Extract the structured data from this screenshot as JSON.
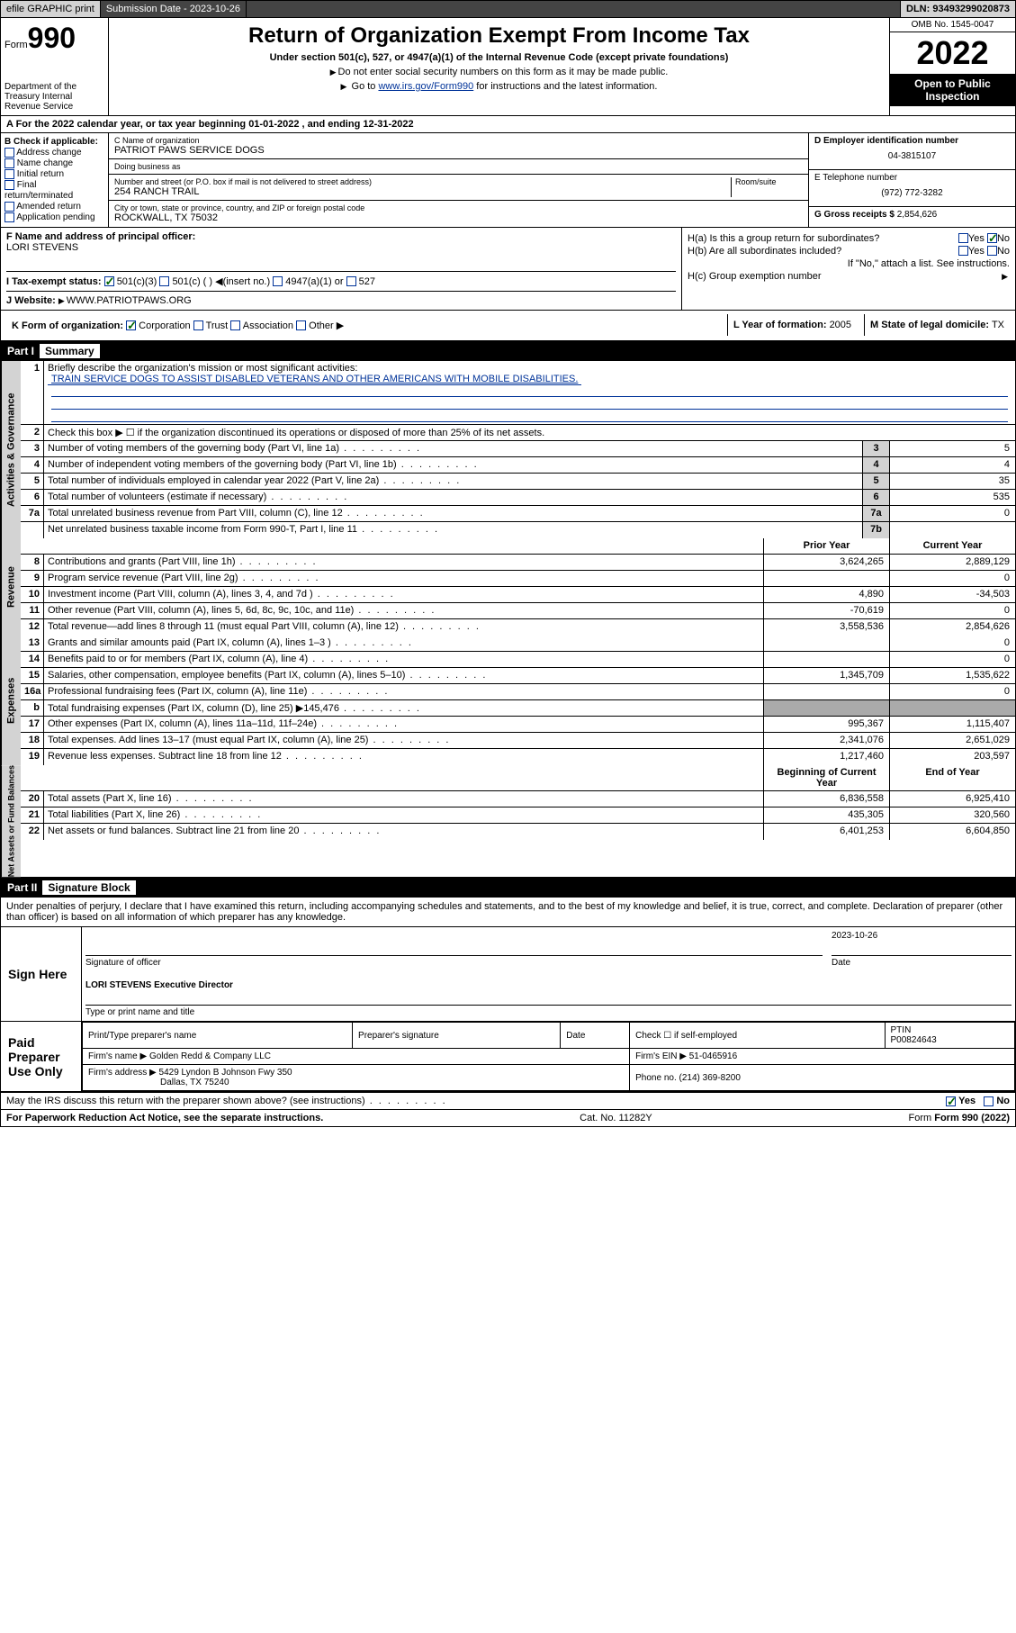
{
  "topbar": {
    "efile": "efile GRAPHIC print",
    "subdate_lbl": "Submission Date - 2023-10-26",
    "dln": "DLN: 93493299020873"
  },
  "header": {
    "form_word": "Form",
    "form_num": "990",
    "dept": "Department of the Treasury Internal Revenue Service",
    "title": "Return of Organization Exempt From Income Tax",
    "sub": "Under section 501(c), 527, or 4947(a)(1) of the Internal Revenue Code (except private foundations)",
    "note1": "Do not enter social security numbers on this form as it may be made public.",
    "note2_pre": "Go to ",
    "note2_link": "www.irs.gov/Form990",
    "note2_post": " for instructions and the latest information.",
    "omb": "OMB No. 1545-0047",
    "year": "2022",
    "inspect": "Open to Public Inspection"
  },
  "row_a": "A For the 2022 calendar year, or tax year beginning 01-01-2022   , and ending 12-31-2022",
  "col_b": {
    "title": "B Check if applicable:",
    "opts": [
      "Address change",
      "Name change",
      "Initial return",
      "Final return/terminated",
      "Amended return",
      "Application pending"
    ]
  },
  "col_c": {
    "name_lbl": "C Name of organization",
    "name_val": "PATRIOT PAWS SERVICE DOGS",
    "dba_lbl": "Doing business as",
    "dba_val": "",
    "addr_lbl": "Number and street (or P.O. box if mail is not delivered to street address)",
    "room_lbl": "Room/suite",
    "addr_val": "254 RANCH TRAIL",
    "city_lbl": "City or town, state or province, country, and ZIP or foreign postal code",
    "city_val": "ROCKWALL, TX  75032"
  },
  "col_d": {
    "ein_lbl": "D Employer identification number",
    "ein_val": "04-3815107",
    "tel_lbl": "E Telephone number",
    "tel_val": "(972) 772-3282",
    "gross_lbl": "G Gross receipts $",
    "gross_val": "2,854,626"
  },
  "sec_f": {
    "lbl": "F Name and address of principal officer:",
    "val": "LORI STEVENS"
  },
  "sec_h": {
    "ha": "H(a)  Is this a group return for subordinates?",
    "ha_yes": "Yes",
    "ha_no": "No",
    "hb": "H(b)  Are all subordinates included?",
    "hb_yes": "Yes",
    "hb_no": "No",
    "hb_note": "If \"No,\" attach a list. See instructions.",
    "hc": "H(c)  Group exemption number"
  },
  "row_i": {
    "lbl": "I  Tax-exempt status:",
    "o1": "501(c)(3)",
    "o2": "501(c) (  )",
    "o2b": "(insert no.)",
    "o3": "4947(a)(1) or",
    "o4": "527"
  },
  "row_j": {
    "lbl": "J  Website:",
    "val": "WWW.PATRIOTPAWS.ORG"
  },
  "row_k": {
    "lbl": "K Form of organization:",
    "opts": [
      "Corporation",
      "Trust",
      "Association",
      "Other"
    ],
    "l_lbl": "L Year of formation:",
    "l_val": "2005",
    "m_lbl": "M State of legal domicile:",
    "m_val": "TX"
  },
  "part1": {
    "name": "Part I",
    "title": "Summary",
    "q1": "Briefly describe the organization's mission or most significant activities:",
    "mission": "TRAIN SERVICE DOGS TO ASSIST DISABLED VETERANS AND OTHER AMERICANS WITH MOBILE DISABILITIES.",
    "q2": "Check this box ▶ ☐  if the organization discontinued its operations or disposed of more than 25% of its net assets.",
    "rows_gov": [
      {
        "n": "3",
        "d": "Number of voting members of the governing body (Part VI, line 1a)",
        "box": "3",
        "v": "5"
      },
      {
        "n": "4",
        "d": "Number of independent voting members of the governing body (Part VI, line 1b)",
        "box": "4",
        "v": "4"
      },
      {
        "n": "5",
        "d": "Total number of individuals employed in calendar year 2022 (Part V, line 2a)",
        "box": "5",
        "v": "35"
      },
      {
        "n": "6",
        "d": "Total number of volunteers (estimate if necessary)",
        "box": "6",
        "v": "535"
      },
      {
        "n": "7a",
        "d": "Total unrelated business revenue from Part VIII, column (C), line 12",
        "box": "7a",
        "v": "0"
      },
      {
        "n": "",
        "d": "Net unrelated business taxable income from Form 990-T, Part I, line 11",
        "box": "7b",
        "v": ""
      }
    ],
    "col_prior": "Prior Year",
    "col_curr": "Current Year",
    "rows_rev": [
      {
        "n": "8",
        "d": "Contributions and grants (Part VIII, line 1h)",
        "p": "3,624,265",
        "c": "2,889,129"
      },
      {
        "n": "9",
        "d": "Program service revenue (Part VIII, line 2g)",
        "p": "",
        "c": "0"
      },
      {
        "n": "10",
        "d": "Investment income (Part VIII, column (A), lines 3, 4, and 7d )",
        "p": "4,890",
        "c": "-34,503"
      },
      {
        "n": "11",
        "d": "Other revenue (Part VIII, column (A), lines 5, 6d, 8c, 9c, 10c, and 11e)",
        "p": "-70,619",
        "c": "0"
      },
      {
        "n": "12",
        "d": "Total revenue—add lines 8 through 11 (must equal Part VIII, column (A), line 12)",
        "p": "3,558,536",
        "c": "2,854,626"
      }
    ],
    "rows_exp": [
      {
        "n": "13",
        "d": "Grants and similar amounts paid (Part IX, column (A), lines 1–3 )",
        "p": "",
        "c": "0"
      },
      {
        "n": "14",
        "d": "Benefits paid to or for members (Part IX, column (A), line 4)",
        "p": "",
        "c": "0"
      },
      {
        "n": "15",
        "d": "Salaries, other compensation, employee benefits (Part IX, column (A), lines 5–10)",
        "p": "1,345,709",
        "c": "1,535,622"
      },
      {
        "n": "16a",
        "d": "Professional fundraising fees (Part IX, column (A), line 11e)",
        "p": "",
        "c": "0"
      },
      {
        "n": "b",
        "d": "Total fundraising expenses (Part IX, column (D), line 25) ▶145,476",
        "p": "shade",
        "c": "shade"
      },
      {
        "n": "17",
        "d": "Other expenses (Part IX, column (A), lines 11a–11d, 11f–24e)",
        "p": "995,367",
        "c": "1,115,407"
      },
      {
        "n": "18",
        "d": "Total expenses. Add lines 13–17 (must equal Part IX, column (A), line 25)",
        "p": "2,341,076",
        "c": "2,651,029"
      },
      {
        "n": "19",
        "d": "Revenue less expenses. Subtract line 18 from line 12",
        "p": "1,217,460",
        "c": "203,597"
      }
    ],
    "col_begin": "Beginning of Current Year",
    "col_end": "End of Year",
    "rows_net": [
      {
        "n": "20",
        "d": "Total assets (Part X, line 16)",
        "p": "6,836,558",
        "c": "6,925,410"
      },
      {
        "n": "21",
        "d": "Total liabilities (Part X, line 26)",
        "p": "435,305",
        "c": "320,560"
      },
      {
        "n": "22",
        "d": "Net assets or fund balances. Subtract line 21 from line 20",
        "p": "6,401,253",
        "c": "6,604,850"
      }
    ],
    "side_gov": "Activities & Governance",
    "side_rev": "Revenue",
    "side_exp": "Expenses",
    "side_net": "Net Assets or Fund Balances"
  },
  "part2": {
    "name": "Part II",
    "title": "Signature Block",
    "penalties": "Under penalties of perjury, I declare that I have examined this return, including accompanying schedules and statements, and to the best of my knowledge and belief, it is true, correct, and complete. Declaration of preparer (other than officer) is based on all information of which preparer has any knowledge."
  },
  "sign": {
    "here": "Sign Here",
    "sig_lbl": "Signature of officer",
    "date_lbl": "Date",
    "date_val": "2023-10-26",
    "name_val": "LORI STEVENS Executive Director",
    "name_lbl": "Type or print name and title"
  },
  "paid": {
    "here": "Paid Preparer Use Only",
    "h1": "Print/Type preparer's name",
    "h2": "Preparer's signature",
    "h3": "Date",
    "h4": "Check ☐ if self-employed",
    "h5_lbl": "PTIN",
    "h5_val": "P00824643",
    "firm_lbl": "Firm's name   ▶",
    "firm_val": "Golden Redd & Company LLC",
    "ein_lbl": "Firm's EIN ▶",
    "ein_val": "51-0465916",
    "addr_lbl": "Firm's address ▶",
    "addr_val": "5429 Lyndon B Johnson Fwy 350",
    "addr2": "Dallas, TX  75240",
    "phone_lbl": "Phone no.",
    "phone_val": "(214) 369-8200"
  },
  "footer": {
    "q": "May the IRS discuss this return with the preparer shown above? (see instructions)",
    "yes": "Yes",
    "no": "No",
    "paperwork": "For Paperwork Reduction Act Notice, see the separate instructions.",
    "cat": "Cat. No. 11282Y",
    "form": "Form 990 (2022)"
  }
}
